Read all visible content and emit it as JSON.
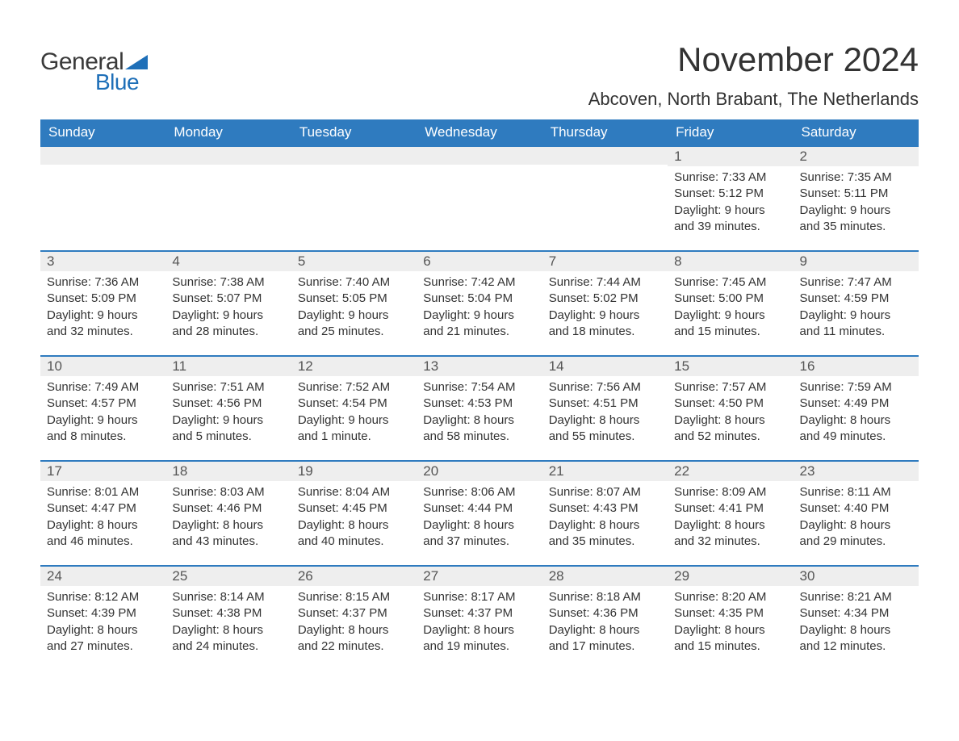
{
  "brand": {
    "word1": "General",
    "word2": "Blue",
    "word1_color": "#3a3a3a",
    "word2_color": "#1e6fb8",
    "triangle_color": "#1e6fb8"
  },
  "header": {
    "month_title": "November 2024",
    "location": "Abcoven, North Brabant, The Netherlands",
    "title_color": "#333333",
    "title_fontsize": 42,
    "location_fontsize": 22
  },
  "calendar": {
    "type": "table",
    "header_bg": "#2f7bbf",
    "header_text_color": "#ffffff",
    "daynum_bg": "#eeeeee",
    "daynum_border_top": "#2f7bbf",
    "cell_text_color": "#333333",
    "background_color": "#ffffff",
    "columns": [
      "Sunday",
      "Monday",
      "Tuesday",
      "Wednesday",
      "Thursday",
      "Friday",
      "Saturday"
    ],
    "weeks": [
      [
        {
          "day": "",
          "lines": []
        },
        {
          "day": "",
          "lines": []
        },
        {
          "day": "",
          "lines": []
        },
        {
          "day": "",
          "lines": []
        },
        {
          "day": "",
          "lines": []
        },
        {
          "day": "1",
          "lines": [
            "Sunrise: 7:33 AM",
            "Sunset: 5:12 PM",
            "Daylight: 9 hours and 39 minutes."
          ]
        },
        {
          "day": "2",
          "lines": [
            "Sunrise: 7:35 AM",
            "Sunset: 5:11 PM",
            "Daylight: 9 hours and 35 minutes."
          ]
        }
      ],
      [
        {
          "day": "3",
          "lines": [
            "Sunrise: 7:36 AM",
            "Sunset: 5:09 PM",
            "Daylight: 9 hours and 32 minutes."
          ]
        },
        {
          "day": "4",
          "lines": [
            "Sunrise: 7:38 AM",
            "Sunset: 5:07 PM",
            "Daylight: 9 hours and 28 minutes."
          ]
        },
        {
          "day": "5",
          "lines": [
            "Sunrise: 7:40 AM",
            "Sunset: 5:05 PM",
            "Daylight: 9 hours and 25 minutes."
          ]
        },
        {
          "day": "6",
          "lines": [
            "Sunrise: 7:42 AM",
            "Sunset: 5:04 PM",
            "Daylight: 9 hours and 21 minutes."
          ]
        },
        {
          "day": "7",
          "lines": [
            "Sunrise: 7:44 AM",
            "Sunset: 5:02 PM",
            "Daylight: 9 hours and 18 minutes."
          ]
        },
        {
          "day": "8",
          "lines": [
            "Sunrise: 7:45 AM",
            "Sunset: 5:00 PM",
            "Daylight: 9 hours and 15 minutes."
          ]
        },
        {
          "day": "9",
          "lines": [
            "Sunrise: 7:47 AM",
            "Sunset: 4:59 PM",
            "Daylight: 9 hours and 11 minutes."
          ]
        }
      ],
      [
        {
          "day": "10",
          "lines": [
            "Sunrise: 7:49 AM",
            "Sunset: 4:57 PM",
            "Daylight: 9 hours and 8 minutes."
          ]
        },
        {
          "day": "11",
          "lines": [
            "Sunrise: 7:51 AM",
            "Sunset: 4:56 PM",
            "Daylight: 9 hours and 5 minutes."
          ]
        },
        {
          "day": "12",
          "lines": [
            "Sunrise: 7:52 AM",
            "Sunset: 4:54 PM",
            "Daylight: 9 hours and 1 minute."
          ]
        },
        {
          "day": "13",
          "lines": [
            "Sunrise: 7:54 AM",
            "Sunset: 4:53 PM",
            "Daylight: 8 hours and 58 minutes."
          ]
        },
        {
          "day": "14",
          "lines": [
            "Sunrise: 7:56 AM",
            "Sunset: 4:51 PM",
            "Daylight: 8 hours and 55 minutes."
          ]
        },
        {
          "day": "15",
          "lines": [
            "Sunrise: 7:57 AM",
            "Sunset: 4:50 PM",
            "Daylight: 8 hours and 52 minutes."
          ]
        },
        {
          "day": "16",
          "lines": [
            "Sunrise: 7:59 AM",
            "Sunset: 4:49 PM",
            "Daylight: 8 hours and 49 minutes."
          ]
        }
      ],
      [
        {
          "day": "17",
          "lines": [
            "Sunrise: 8:01 AM",
            "Sunset: 4:47 PM",
            "Daylight: 8 hours and 46 minutes."
          ]
        },
        {
          "day": "18",
          "lines": [
            "Sunrise: 8:03 AM",
            "Sunset: 4:46 PM",
            "Daylight: 8 hours and 43 minutes."
          ]
        },
        {
          "day": "19",
          "lines": [
            "Sunrise: 8:04 AM",
            "Sunset: 4:45 PM",
            "Daylight: 8 hours and 40 minutes."
          ]
        },
        {
          "day": "20",
          "lines": [
            "Sunrise: 8:06 AM",
            "Sunset: 4:44 PM",
            "Daylight: 8 hours and 37 minutes."
          ]
        },
        {
          "day": "21",
          "lines": [
            "Sunrise: 8:07 AM",
            "Sunset: 4:43 PM",
            "Daylight: 8 hours and 35 minutes."
          ]
        },
        {
          "day": "22",
          "lines": [
            "Sunrise: 8:09 AM",
            "Sunset: 4:41 PM",
            "Daylight: 8 hours and 32 minutes."
          ]
        },
        {
          "day": "23",
          "lines": [
            "Sunrise: 8:11 AM",
            "Sunset: 4:40 PM",
            "Daylight: 8 hours and 29 minutes."
          ]
        }
      ],
      [
        {
          "day": "24",
          "lines": [
            "Sunrise: 8:12 AM",
            "Sunset: 4:39 PM",
            "Daylight: 8 hours and 27 minutes."
          ]
        },
        {
          "day": "25",
          "lines": [
            "Sunrise: 8:14 AM",
            "Sunset: 4:38 PM",
            "Daylight: 8 hours and 24 minutes."
          ]
        },
        {
          "day": "26",
          "lines": [
            "Sunrise: 8:15 AM",
            "Sunset: 4:37 PM",
            "Daylight: 8 hours and 22 minutes."
          ]
        },
        {
          "day": "27",
          "lines": [
            "Sunrise: 8:17 AM",
            "Sunset: 4:37 PM",
            "Daylight: 8 hours and 19 minutes."
          ]
        },
        {
          "day": "28",
          "lines": [
            "Sunrise: 8:18 AM",
            "Sunset: 4:36 PM",
            "Daylight: 8 hours and 17 minutes."
          ]
        },
        {
          "day": "29",
          "lines": [
            "Sunrise: 8:20 AM",
            "Sunset: 4:35 PM",
            "Daylight: 8 hours and 15 minutes."
          ]
        },
        {
          "day": "30",
          "lines": [
            "Sunrise: 8:21 AM",
            "Sunset: 4:34 PM",
            "Daylight: 8 hours and 12 minutes."
          ]
        }
      ]
    ]
  }
}
